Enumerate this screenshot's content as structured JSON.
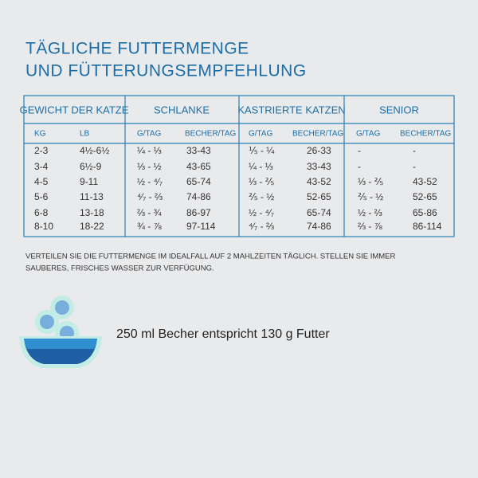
{
  "title": {
    "line1": "TÄGLICHE FUTTERMENGE",
    "line2": "UND FÜTTERUNGSEMPFEHLUNG"
  },
  "table": {
    "groups": [
      "GEWICHT DER KATZE",
      "SCHLANKE",
      "KASTRIERTE KATZEN",
      "SENIOR"
    ],
    "columns": [
      "KG",
      "LB",
      "G/TAG",
      "BECHER/TAG",
      "G/TAG",
      "BECHER/TAG",
      "G/TAG",
      "BECHER/TAG"
    ],
    "rows": [
      [
        "2-3",
        "4½-6½",
        "¼ - ⅓",
        "33-43",
        "⅕ - ¼",
        "26-33",
        "-",
        "-"
      ],
      [
        "3-4",
        "6½-9",
        "⅓ - ½",
        "43-65",
        "¼ - ⅓",
        "33-43",
        "-",
        "-"
      ],
      [
        "4-5",
        "9-11",
        "½ - ⁴⁄₇",
        "65-74",
        "⅓ - ⅖",
        "43-52",
        "⅓ - ⅖",
        "43-52"
      ],
      [
        "5-6",
        "11-13",
        "⁴⁄₇ - ⅔",
        "74-86",
        "⅖ - ½",
        "52-65",
        "⅖ - ½",
        "52-65"
      ],
      [
        "6-8",
        "13-18",
        "⅔ - ¾",
        "86-97",
        "½ - ⁴⁄₇",
        "65-74",
        "½ - ⅔",
        "65-86"
      ],
      [
        "8-10",
        "18-22",
        "¾ - ⅞",
        "97-114",
        "⁴⁄₇ - ⅔",
        "74-86",
        "⅔ - ⅞",
        "86-114"
      ]
    ]
  },
  "note": {
    "line1": "VERTEILEN SIE DIE FUTTERMENGE IM IDEALFALL AUF 2 MAHLZEITEN TÄGLICH. STELLEN SIE IMMER",
    "line2": "SAUBERES, FRISCHES WASSER ZUR VERFÜGUNG."
  },
  "caption": "250 ml Becher entspricht 130 g Futter"
}
